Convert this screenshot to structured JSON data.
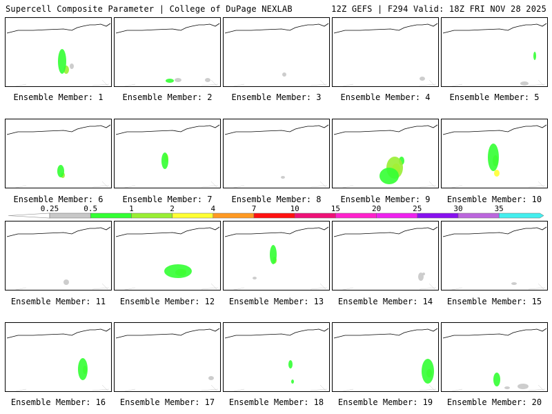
{
  "header": {
    "left": "Supercell Composite Parameter | College of DuPage NEXLAB",
    "right": "12Z GEFS | F294 Valid: 18Z FRI NOV 28 2025"
  },
  "colorbar": {
    "labels": [
      "0.25",
      "0.5",
      "1",
      "2",
      "4",
      "7",
      "10",
      "15",
      "20",
      "25",
      "30",
      "35"
    ],
    "colors": [
      "#c8c8c8",
      "#33ff33",
      "#99ee33",
      "#ffff33",
      "#ff9922",
      "#ff1111",
      "#ee1177",
      "#ff22cc",
      "#ee22ee",
      "#8811ee",
      "#bb66dd",
      "#44eeee"
    ]
  },
  "members": [
    {
      "label": "Ensemble Member: 1",
      "blobs": [
        [
          82,
          63,
          6,
          18,
          "#33ff33"
        ],
        [
          88,
          75,
          4,
          6,
          "#99ee33"
        ],
        [
          96,
          70,
          3,
          4,
          "#c8c8c8"
        ]
      ]
    },
    {
      "label": "Ensemble Member: 2",
      "blobs": [
        [
          80,
          91,
          6,
          3,
          "#33ff33"
        ],
        [
          92,
          90,
          5,
          3,
          "#c8c8c8"
        ],
        [
          135,
          90,
          4,
          3,
          "#c8c8c8"
        ]
      ]
    },
    {
      "label": "Ensemble Member: 3",
      "blobs": [
        [
          88,
          82,
          3,
          3,
          "#c8c8c8"
        ]
      ]
    },
    {
      "label": "Ensemble Member: 4",
      "blobs": [
        [
          130,
          88,
          4,
          3,
          "#c8c8c8"
        ]
      ]
    },
    {
      "label": "Ensemble Member: 5",
      "blobs": [
        [
          135,
          55,
          2,
          6,
          "#33ff33"
        ],
        [
          120,
          95,
          6,
          3,
          "#c8c8c8"
        ]
      ]
    },
    {
      "label": "Ensemble Member: 6",
      "blobs": [
        [
          80,
          75,
          5,
          9,
          "#33ff33"
        ],
        [
          83,
          81,
          3,
          4,
          "#99ee33"
        ]
      ]
    },
    {
      "label": "Ensemble Member: 7",
      "blobs": [
        [
          73,
          60,
          5,
          12,
          "#33ff33"
        ],
        [
          75,
          56,
          3,
          6,
          "#ffff33"
        ]
      ]
    },
    {
      "label": "Ensemble Member: 8",
      "blobs": [
        [
          86,
          84,
          3,
          2,
          "#c8c8c8"
        ]
      ]
    },
    {
      "label": "Ensemble Member: 9",
      "blobs": [
        [
          82,
          82,
          14,
          12,
          "#33ff33"
        ],
        [
          90,
          70,
          12,
          16,
          "#99ee33"
        ],
        [
          92,
          72,
          6,
          8,
          "#ffff33"
        ],
        [
          100,
          60,
          4,
          6,
          "#33ff33"
        ]
      ]
    },
    {
      "label": "Ensemble Member: 10",
      "blobs": [
        [
          75,
          55,
          8,
          20,
          "#33ff33"
        ],
        [
          78,
          60,
          4,
          8,
          "#99ee33"
        ],
        [
          80,
          78,
          4,
          5,
          "#ffff33"
        ]
      ]
    },
    {
      "label": "Ensemble Member: 11",
      "blobs": [
        [
          88,
          88,
          4,
          4,
          "#c8c8c8"
        ]
      ]
    },
    {
      "label": "Ensemble Member: 12",
      "blobs": [
        [
          92,
          72,
          20,
          10,
          "#33ff33"
        ],
        [
          96,
          74,
          8,
          5,
          "#99ee33"
        ],
        [
          100,
          72,
          4,
          3,
          "#ffff33"
        ]
      ]
    },
    {
      "label": "Ensemble Member: 13",
      "blobs": [
        [
          72,
          48,
          5,
          14,
          "#33ff33"
        ],
        [
          74,
          56,
          3,
          5,
          "#99ee33"
        ],
        [
          45,
          82,
          3,
          2,
          "#c8c8c8"
        ]
      ]
    },
    {
      "label": "Ensemble Member: 14",
      "blobs": [
        [
          128,
          80,
          4,
          6,
          "#c8c8c8"
        ],
        [
          132,
          76,
          2,
          2,
          "#c8c8c8"
        ]
      ]
    },
    {
      "label": "Ensemble Member: 15",
      "blobs": [
        [
          105,
          90,
          4,
          2,
          "#c8c8c8"
        ]
      ]
    },
    {
      "label": "Ensemble Member: 16",
      "blobs": [
        [
          112,
          67,
          7,
          16,
          "#33ff33"
        ],
        [
          115,
          68,
          3,
          6,
          "#99ee33"
        ]
      ]
    },
    {
      "label": "Ensemble Member: 17",
      "blobs": [
        [
          140,
          80,
          4,
          3,
          "#c8c8c8"
        ]
      ]
    },
    {
      "label": "Ensemble Member: 18",
      "blobs": [
        [
          97,
          60,
          3,
          6,
          "#33ff33"
        ],
        [
          100,
          85,
          2,
          3,
          "#33ff33"
        ]
      ]
    },
    {
      "label": "Ensemble Member: 19",
      "blobs": [
        [
          138,
          70,
          9,
          18,
          "#33ff33"
        ],
        [
          140,
          73,
          4,
          6,
          "#99ee33"
        ]
      ]
    },
    {
      "label": "Ensemble Member: 20",
      "blobs": [
        [
          80,
          82,
          5,
          10,
          "#33ff33"
        ],
        [
          118,
          92,
          8,
          4,
          "#c8c8c8"
        ],
        [
          95,
          94,
          4,
          2,
          "#c8c8c8"
        ]
      ]
    }
  ]
}
